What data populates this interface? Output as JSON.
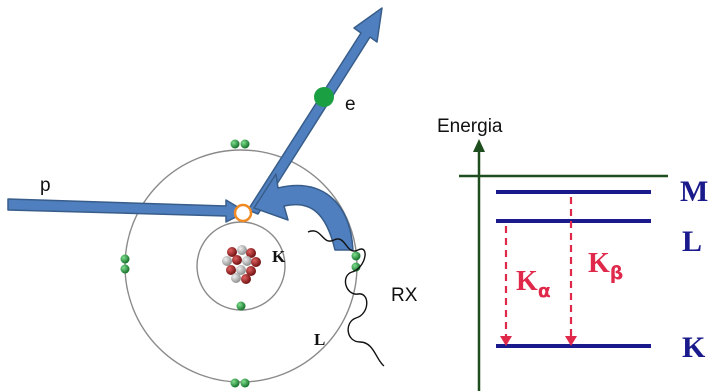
{
  "atom": {
    "incoming_particle_label": "p",
    "ejected_electron_label": "e",
    "inner_shell_label": "K",
    "outer_shell_label": "L",
    "xray_label": "RX"
  },
  "energy_diagram": {
    "axis_label": "Energia",
    "levels": [
      {
        "name": "M"
      },
      {
        "name": "L"
      },
      {
        "name": "K"
      }
    ],
    "transitions": [
      {
        "symbol": "K",
        "subscript": "α",
        "from": "L",
        "to": "K"
      },
      {
        "symbol": "K",
        "subscript": "β",
        "from": "M",
        "to": "K"
      }
    ]
  },
  "colors": {
    "arrow_fill": "#4f7fbe",
    "arrow_stroke": "#385d8a",
    "electron_green": "#1e9a3c",
    "level_blue": "#1a1a8c",
    "axis_green": "#1e4d1e",
    "transition_red": "#e0284a",
    "vacancy_orange": "#f08a24",
    "shell_gray": "#8a8a8a"
  }
}
